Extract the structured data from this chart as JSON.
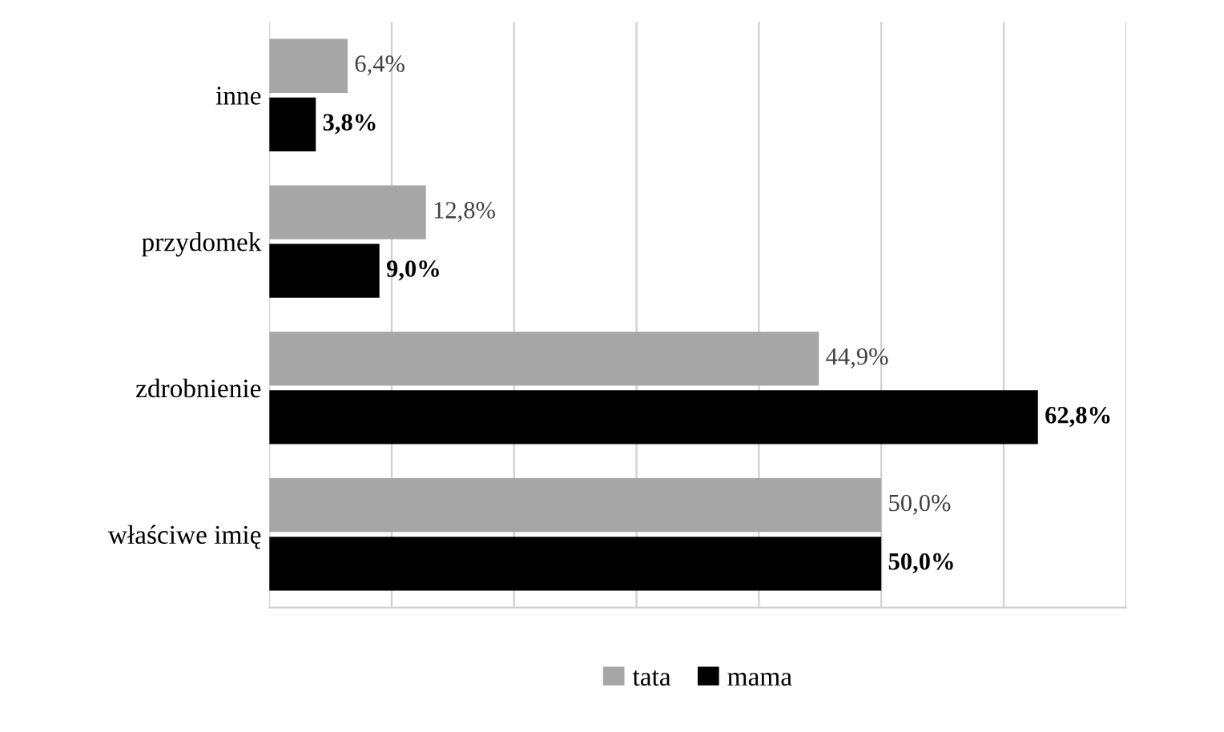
{
  "chart_data": {
    "type": "bar",
    "orientation": "horizontal",
    "categories": [
      "inne",
      "przydomek",
      "zdrobnienie",
      "właściwe imię"
    ],
    "series": [
      {
        "name": "tata",
        "color": "#a6a6a6",
        "values": [
          6.4,
          12.8,
          44.9,
          50.0
        ],
        "value_labels": [
          "6,4%",
          "12,8%",
          "44,9%",
          "50,0%"
        ]
      },
      {
        "name": "mama",
        "color": "#000000",
        "values": [
          3.8,
          9.0,
          62.8,
          50.0
        ],
        "value_labels": [
          "3,8%",
          "9,0%",
          "62,8%",
          "50,0%"
        ]
      }
    ],
    "xlim": [
      0,
      70
    ],
    "xticks": [
      {
        "value": 0,
        "label": null
      },
      {
        "value": 10,
        "label": null
      },
      {
        "value": 20,
        "label": null
      },
      {
        "value": 30,
        "label": null
      },
      {
        "value": 40,
        "label": null
      },
      {
        "value": 50,
        "label": null
      },
      {
        "value": 60,
        "label": null
      },
      {
        "value": 70,
        "label": null
      }
    ],
    "grid": "x",
    "legend": "bottom"
  }
}
